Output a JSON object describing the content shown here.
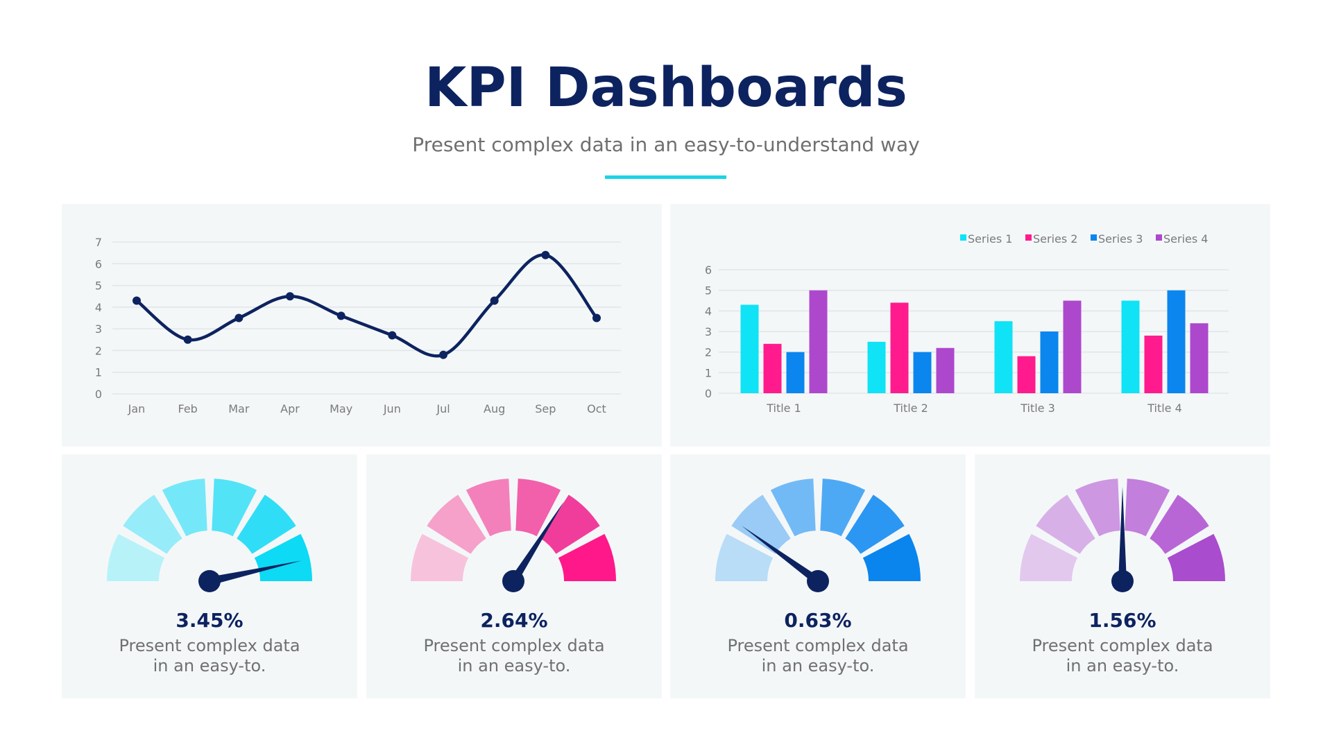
{
  "header": {
    "title": "KPI Dashboards",
    "subtitle": "Present complex data in an easy-to-understand way",
    "accent_color": "#1dd3e6"
  },
  "chart_data": [
    {
      "type": "line",
      "categories": [
        "Jan",
        "Feb",
        "Mar",
        "Apr",
        "May",
        "Jun",
        "Jul",
        "Aug",
        "Sep",
        "Oct"
      ],
      "values": [
        4.3,
        2.5,
        3.5,
        4.5,
        3.6,
        2.7,
        1.8,
        4.3,
        6.4,
        3.5
      ],
      "yticks": [
        "0",
        "1",
        "2",
        "3",
        "4",
        "5",
        "6",
        "7"
      ],
      "ylim": [
        0,
        7
      ],
      "smooth": true,
      "markers": true,
      "grid": true,
      "color": "#0d2360"
    },
    {
      "type": "bar",
      "categories": [
        "Title 1",
        "Title 2",
        "Title 3",
        "Title 4"
      ],
      "series": [
        {
          "name": "Series 1",
          "color": "#0fe3f5",
          "values": [
            4.3,
            2.5,
            3.5,
            4.5
          ]
        },
        {
          "name": "Series 2",
          "color": "#ff1b8d",
          "values": [
            2.4,
            4.4,
            1.8,
            2.8
          ]
        },
        {
          "name": "Series 3",
          "color": "#0a86ee",
          "values": [
            2.0,
            2.0,
            3.0,
            5.0
          ]
        },
        {
          "name": "Series 4",
          "color": "#ad48cd",
          "values": [
            5.0,
            2.2,
            4.5,
            3.4
          ]
        }
      ],
      "yticks": [
        "0",
        "1",
        "2",
        "3",
        "4",
        "5",
        "6"
      ],
      "ylim": [
        0,
        6
      ],
      "grid": true,
      "legend": "top-right"
    }
  ],
  "gauges": [
    {
      "value": "3.45%",
      "line1": "Present complex data",
      "line2": "in an easy-to.",
      "needle_level": 0.93,
      "colors": [
        "#b7f2f9",
        "#96ecf8",
        "#74e8f8",
        "#52e3f7",
        "#30ddf6",
        "#0ddaf4"
      ]
    },
    {
      "value": "2.64%",
      "line1": "Present complex data",
      "line2": "in an easy-to.",
      "needle_level": 0.68,
      "colors": [
        "#f7c3dc",
        "#f5a1ca",
        "#f480bb",
        "#f25fab",
        "#f03d9b",
        "#ff188a"
      ]
    },
    {
      "value": "0.63%",
      "line1": "Present complex data",
      "line2": "in an easy-to.",
      "needle_level": 0.2,
      "colors": [
        "#b9dcf7",
        "#99cbf6",
        "#72baf5",
        "#4ea9f5",
        "#2b97f2",
        "#0a85ee"
      ]
    },
    {
      "value": "1.56%",
      "line1": "Present complex data",
      "line2": "in an easy-to.",
      "needle_level": 0.5,
      "colors": [
        "#e3c8ee",
        "#d8b0e8",
        "#cd97e2",
        "#c27fdc",
        "#b866d6",
        "#a94ccd"
      ]
    }
  ],
  "needle_color": "#0d2360"
}
